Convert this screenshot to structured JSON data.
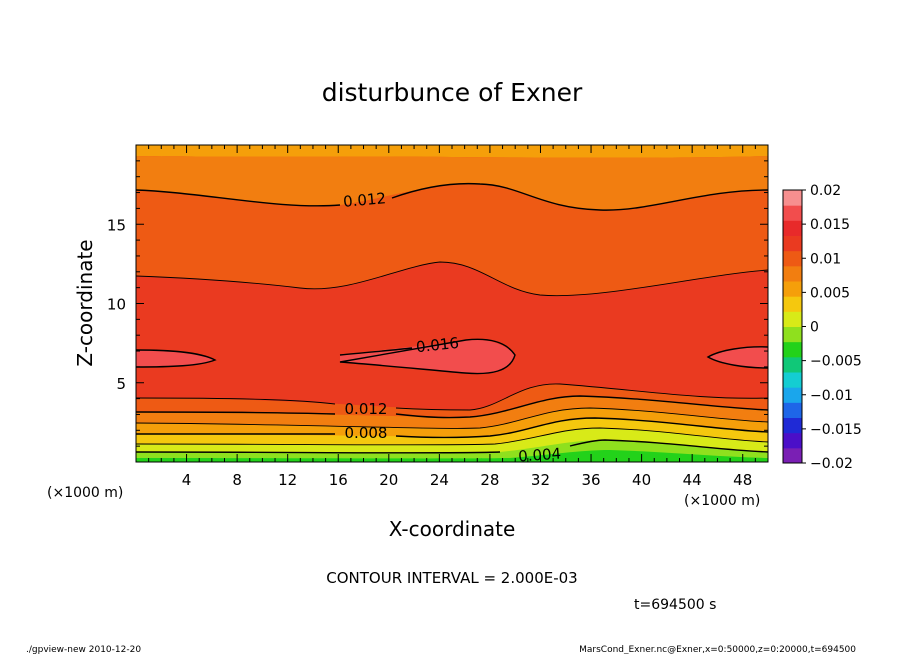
{
  "chart_data": {
    "type": "heatmap",
    "title": "disturbunce of Exner",
    "xlabel": "X-coordinate",
    "ylabel": "Z-coordinate",
    "x_unit_left": "(×1000 m)",
    "x_unit_right": "(×1000 m)",
    "xlim": [
      0,
      50
    ],
    "ylim": [
      0,
      20
    ],
    "x_ticks": [
      "4",
      "8",
      "12",
      "16",
      "20",
      "24",
      "28",
      "32",
      "36",
      "40",
      "44",
      "48"
    ],
    "y_ticks": [
      "5",
      "10",
      "15"
    ],
    "contour_labels": [
      "0.012",
      "0.016",
      "0.012",
      "0.008",
      "0.004"
    ],
    "contour_interval_text": "CONTOUR INTERVAL = 2.000E-03",
    "time_text": "t=694500 s",
    "colorbar_ticks": [
      "0.02",
      "0.015",
      "0.01",
      "0.005",
      "0",
      "−0.005",
      "−0.01",
      "−0.015",
      "−0.02"
    ],
    "colorbar_range": [
      -0.02,
      0.02
    ],
    "grid": false,
    "legend_placement": "right",
    "colors": {
      "levels": [
        "#7a1fb4",
        "#4b0fc8",
        "#1f2ad6",
        "#1e66e8",
        "#1aa6ec",
        "#14cdd2",
        "#10c878",
        "#23d21a",
        "#8fe01e",
        "#d8ea18",
        "#f5c80e",
        "#f59f0a",
        "#f27e10",
        "#ee5a14",
        "#ea3a20",
        "#e82a2a",
        "#f24d4d",
        "#f78f8f"
      ]
    }
  },
  "footer": {
    "left": "./gpview-new   2010-12-20",
    "right": "MarsCond_Exner.nc@Exner,x=0:50000,z=0:20000,t=694500"
  }
}
